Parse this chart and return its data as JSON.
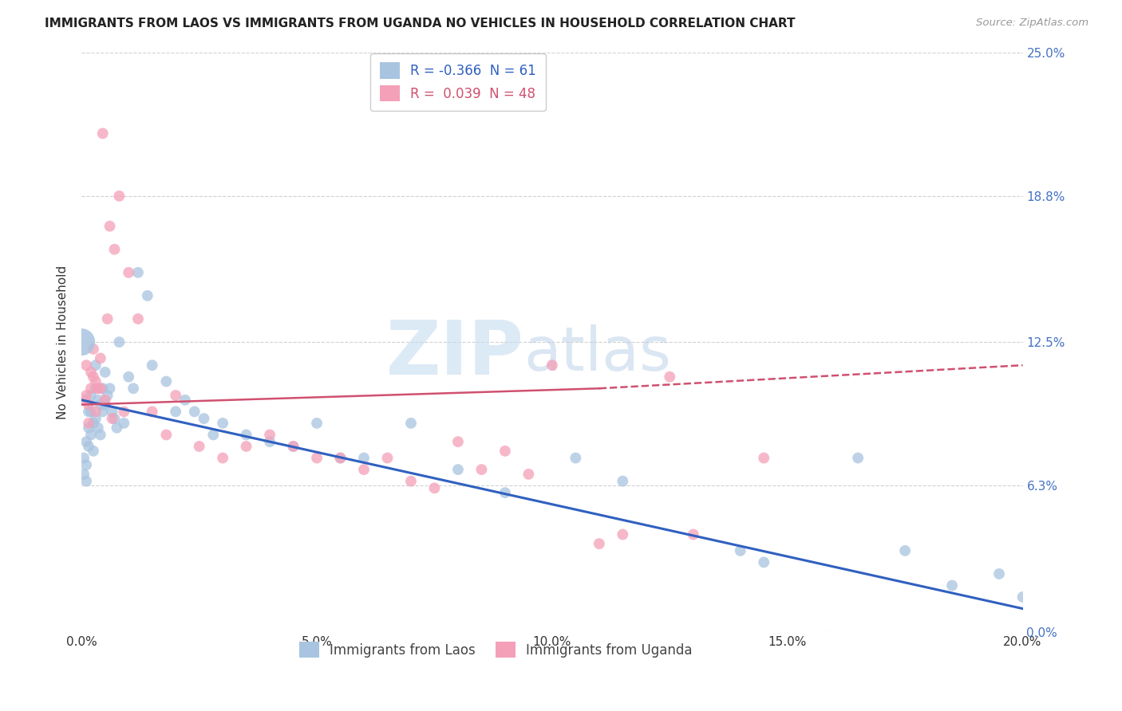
{
  "title": "IMMIGRANTS FROM LAOS VS IMMIGRANTS FROM UGANDA NO VEHICLES IN HOUSEHOLD CORRELATION CHART",
  "source": "Source: ZipAtlas.com",
  "xlabel_tick_vals": [
    0.0,
    5.0,
    10.0,
    15.0,
    20.0
  ],
  "ylabel": "No Vehicles in Household",
  "ytick_vals": [
    0.0,
    6.3,
    12.5,
    18.8,
    25.0
  ],
  "ytick_labels": [
    "0.0%",
    "6.3%",
    "12.5%",
    "18.8%",
    "25.0%"
  ],
  "xlim": [
    0.0,
    20.0
  ],
  "ylim": [
    0.0,
    25.0
  ],
  "laos_R": -0.366,
  "laos_N": 61,
  "uganda_R": 0.039,
  "uganda_N": 48,
  "laos_color": "#a8c4e0",
  "laos_line_color": "#3060c0",
  "uganda_color": "#f4a0b8",
  "uganda_line_color": "#d05070",
  "laos_legend_label": "R = -0.366  N = 61",
  "uganda_legend_label": "R =  0.039  N = 48",
  "bottom_label_laos": "Immigrants from Laos",
  "bottom_label_uganda": "Immigrants from Uganda",
  "watermark_zip": "ZIP",
  "watermark_atlas": "atlas",
  "laos_x": [
    0.05,
    0.05,
    0.1,
    0.1,
    0.1,
    0.15,
    0.15,
    0.15,
    0.2,
    0.2,
    0.2,
    0.25,
    0.25,
    0.3,
    0.3,
    0.3,
    0.35,
    0.35,
    0.4,
    0.4,
    0.45,
    0.45,
    0.5,
    0.5,
    0.55,
    0.6,
    0.65,
    0.7,
    0.75,
    0.8,
    0.9,
    1.0,
    1.1,
    1.2,
    1.4,
    1.5,
    1.8,
    2.0,
    2.2,
    2.4,
    2.6,
    2.8,
    3.0,
    3.5,
    4.0,
    4.5,
    5.0,
    5.5,
    6.0,
    7.0,
    8.0,
    9.0,
    10.5,
    11.5,
    14.0,
    14.5,
    16.5,
    17.5,
    18.5,
    19.5,
    20.0
  ],
  "laos_y": [
    7.5,
    6.8,
    8.2,
    7.2,
    6.5,
    9.5,
    8.8,
    8.0,
    10.2,
    9.5,
    8.5,
    9.0,
    7.8,
    11.5,
    10.5,
    9.2,
    10.0,
    8.8,
    9.8,
    8.5,
    10.5,
    9.5,
    11.2,
    9.8,
    10.2,
    10.5,
    9.5,
    9.2,
    8.8,
    12.5,
    9.0,
    11.0,
    10.5,
    15.5,
    14.5,
    11.5,
    10.8,
    9.5,
    10.0,
    9.5,
    9.2,
    8.5,
    9.0,
    8.5,
    8.2,
    8.0,
    9.0,
    7.5,
    7.5,
    9.0,
    7.0,
    6.0,
    7.5,
    6.5,
    3.5,
    3.0,
    7.5,
    3.5,
    2.0,
    2.5,
    1.5
  ],
  "laos_sizes": [
    60,
    60,
    60,
    60,
    60,
    60,
    60,
    60,
    60,
    60,
    60,
    60,
    60,
    60,
    60,
    60,
    60,
    60,
    60,
    60,
    60,
    60,
    60,
    60,
    60,
    60,
    60,
    60,
    60,
    60,
    60,
    60,
    60,
    60,
    60,
    60,
    60,
    60,
    60,
    60,
    60,
    60,
    60,
    60,
    60,
    60,
    60,
    60,
    60,
    60,
    60,
    60,
    60,
    60,
    60,
    60,
    60,
    60,
    60,
    60,
    60
  ],
  "laos_big_x": 0.0,
  "laos_big_y": 12.5,
  "laos_big_size": 600,
  "uganda_x": [
    0.05,
    0.1,
    0.1,
    0.15,
    0.15,
    0.2,
    0.2,
    0.25,
    0.25,
    0.3,
    0.3,
    0.35,
    0.4,
    0.4,
    0.45,
    0.5,
    0.55,
    0.6,
    0.65,
    0.7,
    0.8,
    0.9,
    1.0,
    1.2,
    1.5,
    1.8,
    2.0,
    2.5,
    3.0,
    3.5,
    4.0,
    4.5,
    5.0,
    5.5,
    6.0,
    6.5,
    7.0,
    7.5,
    8.0,
    8.5,
    9.0,
    9.5,
    10.0,
    11.0,
    11.5,
    12.5,
    13.0,
    14.5
  ],
  "uganda_y": [
    10.0,
    11.5,
    10.2,
    9.8,
    9.0,
    11.2,
    10.5,
    12.2,
    11.0,
    10.8,
    9.5,
    10.5,
    11.8,
    10.5,
    21.5,
    10.0,
    13.5,
    17.5,
    9.2,
    16.5,
    18.8,
    9.5,
    15.5,
    13.5,
    9.5,
    8.5,
    10.2,
    8.0,
    7.5,
    8.0,
    8.5,
    8.0,
    7.5,
    7.5,
    7.0,
    7.5,
    6.5,
    6.2,
    8.2,
    7.0,
    7.8,
    6.8,
    11.5,
    3.8,
    4.2,
    11.0,
    4.2,
    7.5
  ]
}
